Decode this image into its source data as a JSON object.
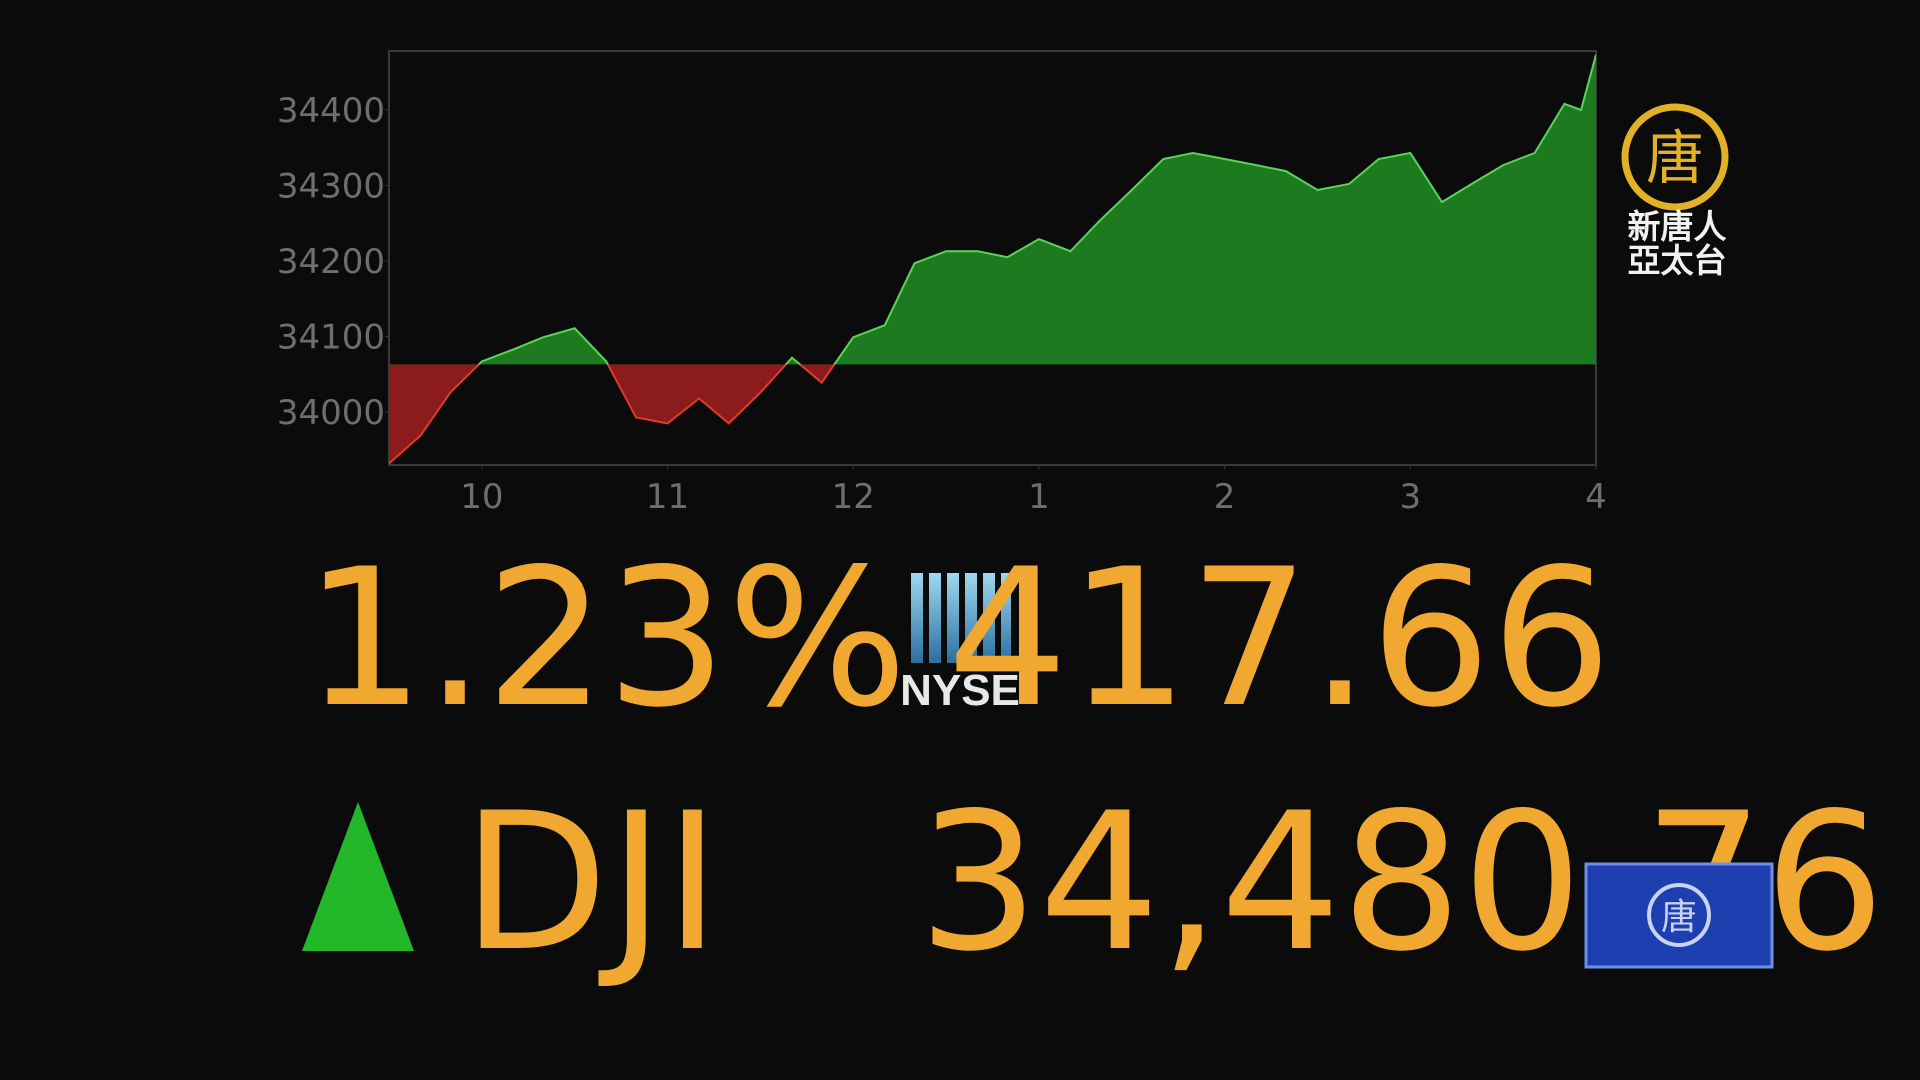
{
  "chart_data": {
    "type": "area",
    "x": [
      9.5,
      9.67,
      9.83,
      10,
      10.17,
      10.33,
      10.5,
      10.67,
      10.83,
      11,
      11.17,
      11.33,
      11.5,
      11.67,
      11.83,
      12,
      12.17,
      12.33,
      12.5,
      12.67,
      12.83,
      13,
      13.17,
      13.33,
      13.5,
      13.67,
      13.83,
      14,
      14.17,
      14.33,
      14.5,
      14.67,
      14.83,
      15,
      15.17,
      15.33,
      15.5,
      15.67,
      15.83,
      15.92,
      16
    ],
    "values": [
      33932,
      33969,
      34026,
      34067,
      34083,
      34099,
      34111,
      34067,
      33993,
      33985,
      34018,
      33985,
      34026,
      34072,
      34039,
      34099,
      34115,
      34197,
      34213,
      34213,
      34205,
      34229,
      34213,
      34254,
      34294,
      34335,
      34343,
      34335,
      34327,
      34319,
      34294,
      34302,
      34335,
      34343,
      34278,
      34302,
      34327,
      34343,
      34408,
      34400,
      34473
    ],
    "xlim": [
      9.5,
      16
    ],
    "ylim": [
      33930,
      34478
    ],
    "xticks": [
      10,
      11,
      12,
      {
        "value": 13,
        "label": "1"
      },
      {
        "value": 14,
        "label": "2"
      },
      {
        "value": 15,
        "label": "3"
      },
      {
        "value": 16,
        "label": "4"
      }
    ],
    "yticks": [
      34000,
      34100,
      34200,
      34300,
      34400
    ],
    "up_color": "#1e7a1e",
    "up_line_color": "#5ad35a",
    "down_color": "#8c1c1c",
    "down_line_color": "#e03a2a"
  },
  "ticker": {
    "symbol": "DJI",
    "direction": "up",
    "exchange": "NYSE",
    "percent_change": {
      "value": 1.23,
      "label": "1.23%"
    },
    "point_change": {
      "value": 417.66,
      "label": "417.66"
    },
    "close": {
      "value": 34480.76,
      "label": "34,480.76"
    }
  },
  "logo": {
    "emblem": "唐",
    "line1": "新唐人",
    "line2": "亞太台"
  },
  "corner_badge": {
    "emblem": "唐"
  }
}
